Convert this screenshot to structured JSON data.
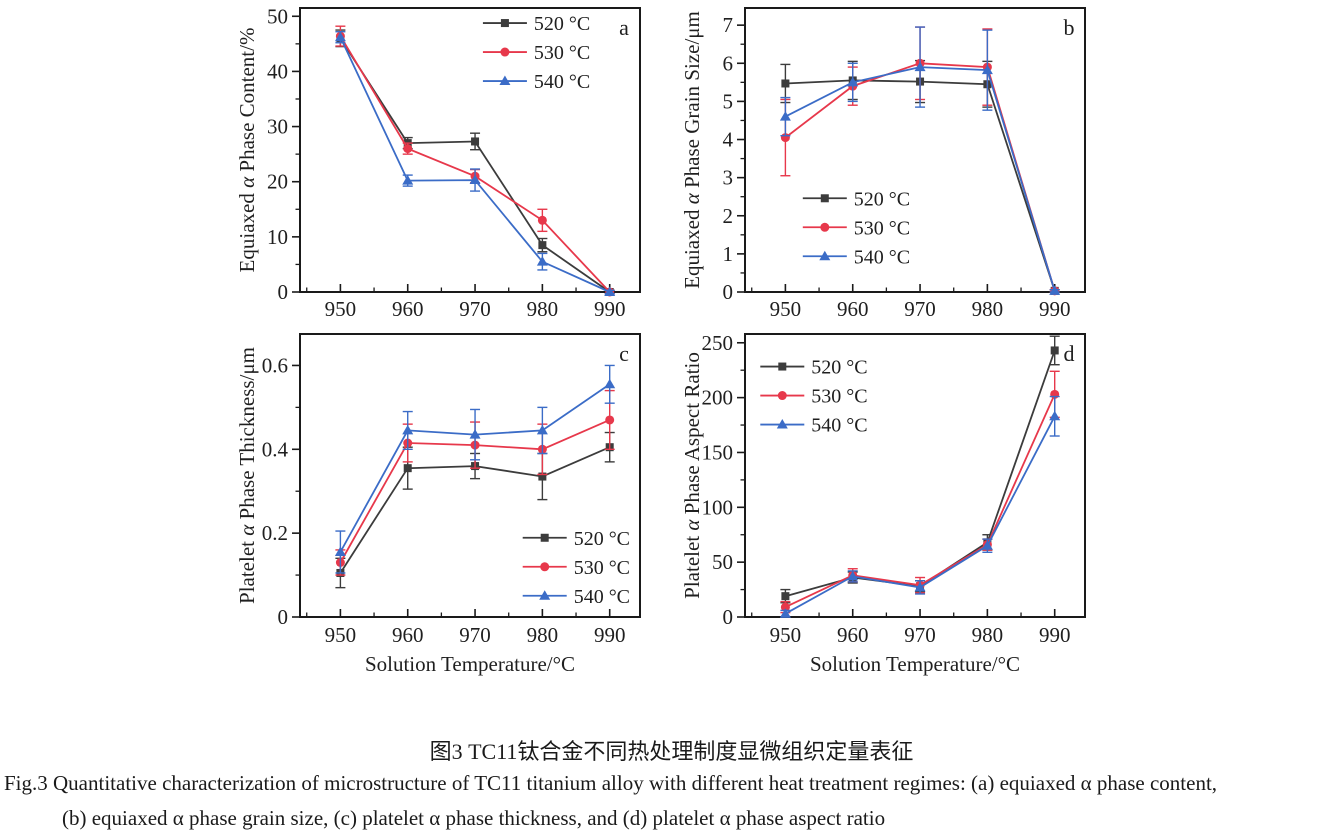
{
  "colors": {
    "background": "#ffffff",
    "axis": "#1a1a1a",
    "s520": "#3c3c3c",
    "s530": "#e7384b",
    "s540": "#3b6cc7"
  },
  "caption": {
    "chinese": "图3  TC11钛合金不同热处理制度显微组织定量表征",
    "english_line1": "Fig.3  Quantitative characterization of microstructure of TC11 titanium alloy with different heat treatment regimes: (a) equiaxed α phase content,",
    "english_line2": "(b) equiaxed α phase grain size, (c) platelet α phase thickness, and (d) platelet α phase aspect ratio"
  },
  "chart_data": [
    {
      "panel_label": "a",
      "type": "line",
      "x": [
        950,
        960,
        970,
        980,
        990
      ],
      "xlim": [
        944,
        994.5
      ],
      "xlabel": "",
      "ylabel": "Equiaxed α Phase Content/%",
      "ylim": [
        0,
        51.5
      ],
      "yticks": [
        0,
        10,
        20,
        30,
        40,
        50
      ],
      "y_minor_step": 5,
      "legend": {
        "fx": 0.538,
        "fy": 0.053
      },
      "series": [
        {
          "name": "520 °C",
          "marker": "square",
          "color_key": "s520",
          "values": [
            46.0,
            27.0,
            27.3,
            8.5,
            0
          ],
          "errors": [
            1.5,
            1.0,
            1.5,
            1.2,
            0.3
          ]
        },
        {
          "name": "530 °C",
          "marker": "circle",
          "color_key": "s530",
          "values": [
            46.4,
            26.0,
            21.0,
            13.0,
            0
          ],
          "errors": [
            1.8,
            1.0,
            1.2,
            2.0,
            0.3
          ]
        },
        {
          "name": "540 °C",
          "marker": "triangle",
          "color_key": "s540",
          "values": [
            46.2,
            20.2,
            20.3,
            5.5,
            0
          ],
          "errors": [
            1.0,
            1.0,
            2.0,
            1.5,
            0.3
          ]
        }
      ]
    },
    {
      "panel_label": "b",
      "type": "line",
      "x": [
        950,
        960,
        970,
        980,
        990
      ],
      "xlim": [
        944,
        994.5
      ],
      "xlabel": "",
      "ylabel": "Equiaxed α Phase Grain Size/μm",
      "ylim": [
        0,
        7.45
      ],
      "yticks": [
        0,
        1,
        2,
        3,
        4,
        5,
        6,
        7
      ],
      "y_minor_step": 0.5,
      "legend": {
        "fx": 0.17,
        "fy": 0.67
      },
      "series": [
        {
          "name": "520 °C",
          "marker": "square",
          "color_key": "s520",
          "values": [
            5.47,
            5.55,
            5.52,
            5.45,
            0.03
          ],
          "errors": [
            0.5,
            0.5,
            0.55,
            0.6,
            0.03
          ]
        },
        {
          "name": "530 °C",
          "marker": "circle",
          "color_key": "s530",
          "values": [
            4.05,
            5.4,
            6.0,
            5.9,
            0.03
          ],
          "errors": [
            1.0,
            0.5,
            0.95,
            1.0,
            0.03
          ]
        },
        {
          "name": "540 °C",
          "marker": "triangle",
          "color_key": "s540",
          "values": [
            4.6,
            5.5,
            5.9,
            5.82,
            0.03
          ],
          "errors": [
            0.5,
            0.5,
            1.05,
            1.05,
            0.03
          ]
        }
      ]
    },
    {
      "panel_label": "c",
      "type": "line",
      "x": [
        950,
        960,
        970,
        980,
        990
      ],
      "xlim": [
        944,
        994.5
      ],
      "xlabel": "Solution Temperature/°C",
      "ylabel": "Platelet α Phase Thickness/μm",
      "ylim": [
        0,
        0.675
      ],
      "yticks": [
        0,
        0.2,
        0.4,
        0.6
      ],
      "y_minor_step": 0.1,
      "legend": {
        "fx": 0.655,
        "fy": 0.72
      },
      "series": [
        {
          "name": "520 °C",
          "marker": "square",
          "color_key": "s520",
          "values": [
            0.105,
            0.355,
            0.36,
            0.335,
            0.405
          ],
          "errors": [
            0.035,
            0.05,
            0.03,
            0.055,
            0.035
          ]
        },
        {
          "name": "530 °C",
          "marker": "circle",
          "color_key": "s530",
          "values": [
            0.13,
            0.415,
            0.41,
            0.4,
            0.47
          ],
          "errors": [
            0.03,
            0.045,
            0.055,
            0.06,
            0.07
          ]
        },
        {
          "name": "540 °C",
          "marker": "triangle",
          "color_key": "s540",
          "values": [
            0.155,
            0.445,
            0.435,
            0.445,
            0.555
          ],
          "errors": [
            0.05,
            0.045,
            0.06,
            0.055,
            0.045
          ]
        }
      ]
    },
    {
      "panel_label": "d",
      "type": "line",
      "x": [
        950,
        960,
        970,
        980,
        990
      ],
      "xlim": [
        944,
        994.5
      ],
      "xlabel": "Solution Temperature/°C",
      "ylabel": "Platelet α Phase Aspect Ratio",
      "ylim": [
        0,
        258
      ],
      "yticks": [
        0,
        50,
        100,
        150,
        200,
        250
      ],
      "y_minor_step": 25,
      "legend": {
        "fx": 0.045,
        "fy": 0.115
      },
      "series": [
        {
          "name": "520 °C",
          "marker": "square",
          "color_key": "s520",
          "values": [
            19,
            36,
            28,
            68,
            243
          ],
          "errors": [
            6,
            5,
            5,
            7,
            13
          ]
        },
        {
          "name": "530 °C",
          "marker": "circle",
          "color_key": "s530",
          "values": [
            9,
            38,
            29,
            66,
            203
          ],
          "errors": [
            5,
            6,
            7,
            5,
            21
          ]
        },
        {
          "name": "540 °C",
          "marker": "triangle",
          "color_key": "s540",
          "values": [
            3,
            37,
            27,
            65,
            183
          ],
          "errors": [
            3,
            5,
            6,
            6,
            18
          ]
        }
      ]
    }
  ]
}
